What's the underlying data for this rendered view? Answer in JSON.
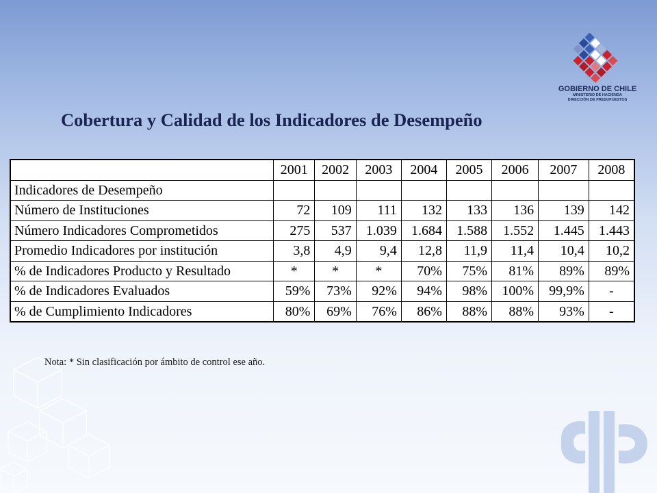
{
  "logo": {
    "title": "GOBIERNO DE CHILE",
    "line1": "MINISTERIO DE HACIENDA",
    "line2": "DIRECCIÓN DE PRESUPUESTOS"
  },
  "title": "Cobertura y Calidad de los Indicadores de Desempeño",
  "table": {
    "years": [
      "2001",
      "2002",
      "2003",
      "2004",
      "2005",
      "2006",
      "2007",
      "2008"
    ],
    "rows": [
      {
        "label": "Indicadores de Desempeño",
        "values": [
          "",
          "",
          "",
          "",
          "",
          "",
          "",
          ""
        ]
      },
      {
        "label": "Número de Instituciones",
        "values": [
          "72",
          "109",
          "111",
          "132",
          "133",
          "136",
          "139",
          "142"
        ]
      },
      {
        "label": "Número Indicadores Comprometidos",
        "values": [
          "275",
          "537",
          "1.039",
          "1.684",
          "1.588",
          "1.552",
          "1.445",
          "1.443"
        ]
      },
      {
        "label": "Promedio Indicadores por institución",
        "values": [
          "3,8",
          "4,9",
          "9,4",
          "12,8",
          "11,9",
          "11,4",
          "10,4",
          "10,2"
        ]
      },
      {
        "label": "% de Indicadores Producto y Resultado",
        "values": [
          "*",
          "*",
          "*",
          "70%",
          "75%",
          "81%",
          "89%",
          "89%"
        ]
      },
      {
        "label": "% de Indicadores Evaluados",
        "values": [
          "59%",
          "73%",
          "92%",
          "94%",
          "98%",
          "100%",
          "99,9%",
          "-"
        ]
      },
      {
        "label": "% de Cumplimiento Indicadores",
        "values": [
          "80%",
          "69%",
          "76%",
          "86%",
          "88%",
          "88%",
          "93%",
          "-"
        ]
      }
    ]
  },
  "note": "Nota: * Sin clasificación por ámbito de control ese año.",
  "colors": {
    "title": "#1a2452",
    "logo_red": "#c8232c",
    "logo_blue": "#2a4a9a",
    "background_top": "#7d9bd3"
  }
}
